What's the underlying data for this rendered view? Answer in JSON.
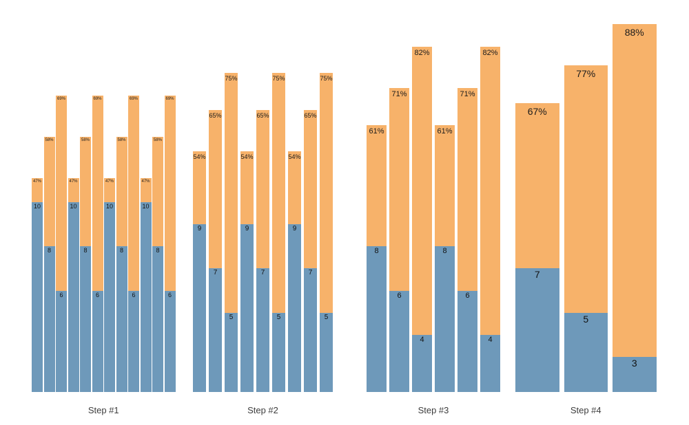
{
  "chart_data": {
    "type": "bar",
    "subtype": "grouped-stacked",
    "title": "",
    "xlabel": "",
    "ylabel": "",
    "axes_visible": false,
    "grid": false,
    "legend": null,
    "background": "#ffffff",
    "colors": {
      "blue_segment": "#6E99BA",
      "orange_segment": "#F7B26A",
      "percent_label": "#1a1a1a",
      "value_label": "#111111",
      "group_label": "#3c3c3c"
    },
    "groups": [
      {
        "label": "Step #1",
        "bars": [
          {
            "value": 10,
            "percent": "47%"
          },
          {
            "value": 8,
            "percent": "58%"
          },
          {
            "value": 6,
            "percent": "69%"
          },
          {
            "value": 10,
            "percent": "47%"
          },
          {
            "value": 8,
            "percent": "58%"
          },
          {
            "value": 6,
            "percent": "69%"
          },
          {
            "value": 10,
            "percent": "47%"
          },
          {
            "value": 8,
            "percent": "58%"
          },
          {
            "value": 6,
            "percent": "69%"
          },
          {
            "value": 10,
            "percent": "47%"
          },
          {
            "value": 8,
            "percent": "58%"
          },
          {
            "value": 6,
            "percent": "69%"
          }
        ]
      },
      {
        "label": "Step #2",
        "bars": [
          {
            "value": 9,
            "percent": "54%"
          },
          {
            "value": 7,
            "percent": "65%"
          },
          {
            "value": 5,
            "percent": "75%"
          },
          {
            "value": 9,
            "percent": "54%"
          },
          {
            "value": 7,
            "percent": "65%"
          },
          {
            "value": 5,
            "percent": "75%"
          },
          {
            "value": 9,
            "percent": "54%"
          },
          {
            "value": 7,
            "percent": "65%"
          },
          {
            "value": 5,
            "percent": "75%"
          }
        ]
      },
      {
        "label": "Step #3",
        "bars": [
          {
            "value": 8,
            "percent": "61%"
          },
          {
            "value": 6,
            "percent": "71%"
          },
          {
            "value": 4,
            "percent": "82%"
          },
          {
            "value": 8,
            "percent": "61%"
          },
          {
            "value": 6,
            "percent": "71%"
          },
          {
            "value": 4,
            "percent": "82%"
          }
        ]
      },
      {
        "label": "Step #4",
        "bars": [
          {
            "value": 7,
            "percent": "67%"
          },
          {
            "value": 5,
            "percent": "77%"
          },
          {
            "value": 3,
            "percent": "88%"
          }
        ]
      }
    ]
  }
}
